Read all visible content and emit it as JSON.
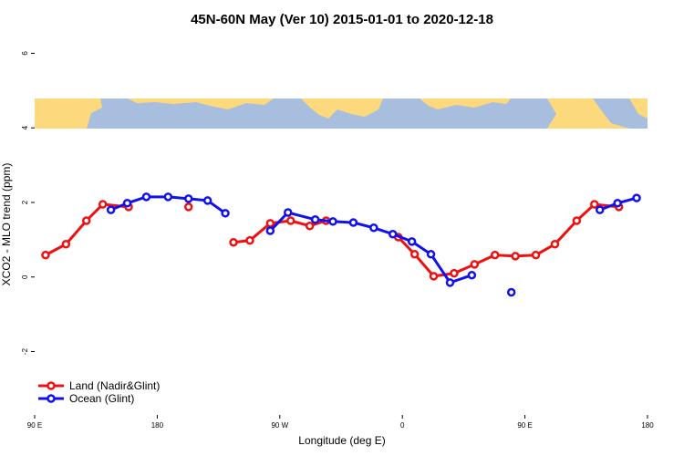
{
  "chart_data": {
    "type": "line",
    "title": "45N-60N May (Ver 10)   2015-01-01 to 2020-12-18",
    "x_label": "Longitude (deg E)",
    "y_label": "XCO2 - MLO trend (ppm)",
    "xlim": [
      90,
      540
    ],
    "ylim": [
      -3.7,
      6.5
    ],
    "xticks": [
      {
        "value": 90,
        "label": "90 E"
      },
      {
        "value": 180,
        "label": "180"
      },
      {
        "value": 270,
        "label": "90 W"
      },
      {
        "value": 360,
        "label": "0"
      },
      {
        "value": 450,
        "label": "90 E"
      },
      {
        "value": 540,
        "label": "180"
      }
    ],
    "yticks": [
      -2,
      0,
      2,
      4,
      6
    ],
    "legend": "bottom-left",
    "series": [
      {
        "name": "Land (Nadir&Glint)",
        "color": "#ee1111",
        "x": [
          98,
          113,
          128,
          140,
          159,
          180,
          203,
          220,
          236,
          248,
          263,
          278,
          292,
          304,
          330,
          357,
          369,
          383,
          398,
          413,
          428,
          443,
          458,
          472,
          488,
          501,
          519
        ],
        "values": [
          0.59,
          0.88,
          1.51,
          1.95,
          1.88,
          null,
          1.88,
          null,
          0.93,
          0.98,
          1.44,
          1.51,
          1.37,
          1.51,
          null,
          1.07,
          0.61,
          0.02,
          0.1,
          0.34,
          0.59,
          0.56,
          0.59,
          0.88,
          1.51,
          1.95,
          1.88
        ]
      },
      {
        "name": "Ocean (Glint)",
        "color": "#1111ee",
        "x": [
          146,
          158,
          172,
          188,
          203,
          217,
          230,
          247,
          263,
          276,
          296,
          309,
          324,
          339,
          353,
          367,
          381,
          395,
          411,
          425,
          440,
          470,
          505,
          518,
          532
        ],
        "values": [
          1.8,
          1.98,
          2.15,
          2.15,
          2.1,
          2.05,
          1.71,
          null,
          1.24,
          1.73,
          1.54,
          1.49,
          1.46,
          1.32,
          1.15,
          0.95,
          0.61,
          -0.15,
          0.05,
          null,
          -0.41,
          null,
          1.8,
          1.98,
          2.12
        ]
      }
    ]
  }
}
